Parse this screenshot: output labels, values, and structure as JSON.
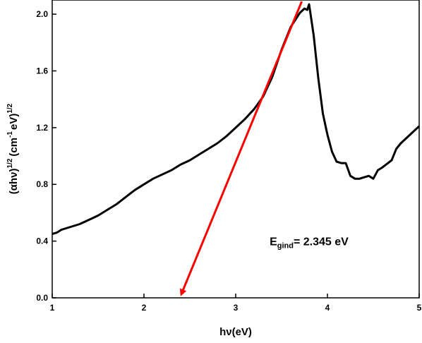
{
  "chart_data": {
    "type": "line",
    "xlabel": "hν(eV)",
    "ylabel_main": "(αhν)",
    "ylabel_exp1": "1/2",
    "ylabel_unit_a": "(cm",
    "ylabel_unit_exp": "-1",
    "ylabel_unit_b": "eV)",
    "ylabel_exp2": "1/2",
    "xlim": [
      1,
      5
    ],
    "ylim": [
      0,
      2.1
    ],
    "x_ticks": [
      1,
      2,
      3,
      4,
      5
    ],
    "x_tick_labels": [
      "1",
      "2",
      "3",
      "4",
      "5"
    ],
    "y_ticks": [
      0.0,
      0.4,
      0.8,
      1.2,
      1.6,
      2.0
    ],
    "y_tick_labels": [
      "0.0",
      "0.4",
      "0.8",
      "1.2",
      "1.6",
      "2.0"
    ],
    "grid": false,
    "series": [
      {
        "color": "#000000",
        "x": [
          1.0,
          1.05,
          1.1,
          1.2,
          1.3,
          1.4,
          1.5,
          1.6,
          1.7,
          1.8,
          1.9,
          2.0,
          2.1,
          2.2,
          2.3,
          2.4,
          2.5,
          2.6,
          2.7,
          2.8,
          2.9,
          3.0,
          3.1,
          3.2,
          3.3,
          3.4,
          3.5,
          3.6,
          3.7,
          3.75,
          3.78,
          3.8,
          3.85,
          3.9,
          3.95,
          4.0,
          4.05,
          4.1,
          4.15,
          4.2,
          4.25,
          4.3,
          4.35,
          4.4,
          4.45,
          4.5,
          4.55,
          4.6,
          4.7,
          4.75,
          4.8,
          4.9,
          5.0
        ],
        "y": [
          0.45,
          0.46,
          0.48,
          0.5,
          0.52,
          0.55,
          0.58,
          0.62,
          0.66,
          0.71,
          0.76,
          0.8,
          0.84,
          0.87,
          0.9,
          0.94,
          0.97,
          1.01,
          1.05,
          1.09,
          1.14,
          1.2,
          1.26,
          1.33,
          1.42,
          1.56,
          1.75,
          1.91,
          2.01,
          2.04,
          2.03,
          2.07,
          1.85,
          1.55,
          1.3,
          1.15,
          1.03,
          0.96,
          0.95,
          0.95,
          0.86,
          0.84,
          0.84,
          0.85,
          0.86,
          0.84,
          0.9,
          0.92,
          0.97,
          1.05,
          1.09,
          1.15,
          1.21
        ]
      }
    ],
    "fit_line": {
      "color": "#ff0000",
      "x": [
        3.72,
        2.41
      ],
      "y": [
        2.09,
        0.0
      ]
    },
    "annotation": {
      "main": "E",
      "sub": "gind",
      "value": "= 2.345 eV",
      "at": [
        3.37,
        0.37
      ]
    }
  }
}
